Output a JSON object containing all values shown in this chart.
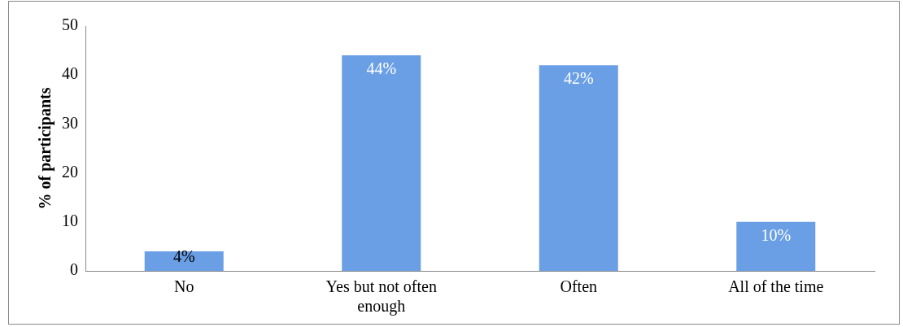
{
  "chart_data": {
    "type": "bar",
    "ylabel": "% of participants",
    "categories": [
      "No",
      "Yes but not often enough",
      "Often",
      "All of the time"
    ],
    "values": [
      4,
      44,
      42,
      10
    ],
    "value_labels": [
      "4%",
      "44%",
      "42%",
      "10%"
    ],
    "color": "#6a9fe6",
    "ylim": [
      0,
      50
    ],
    "yticks": [
      0,
      10,
      20,
      30,
      40,
      50
    ],
    "grid": false,
    "legend": false
  }
}
